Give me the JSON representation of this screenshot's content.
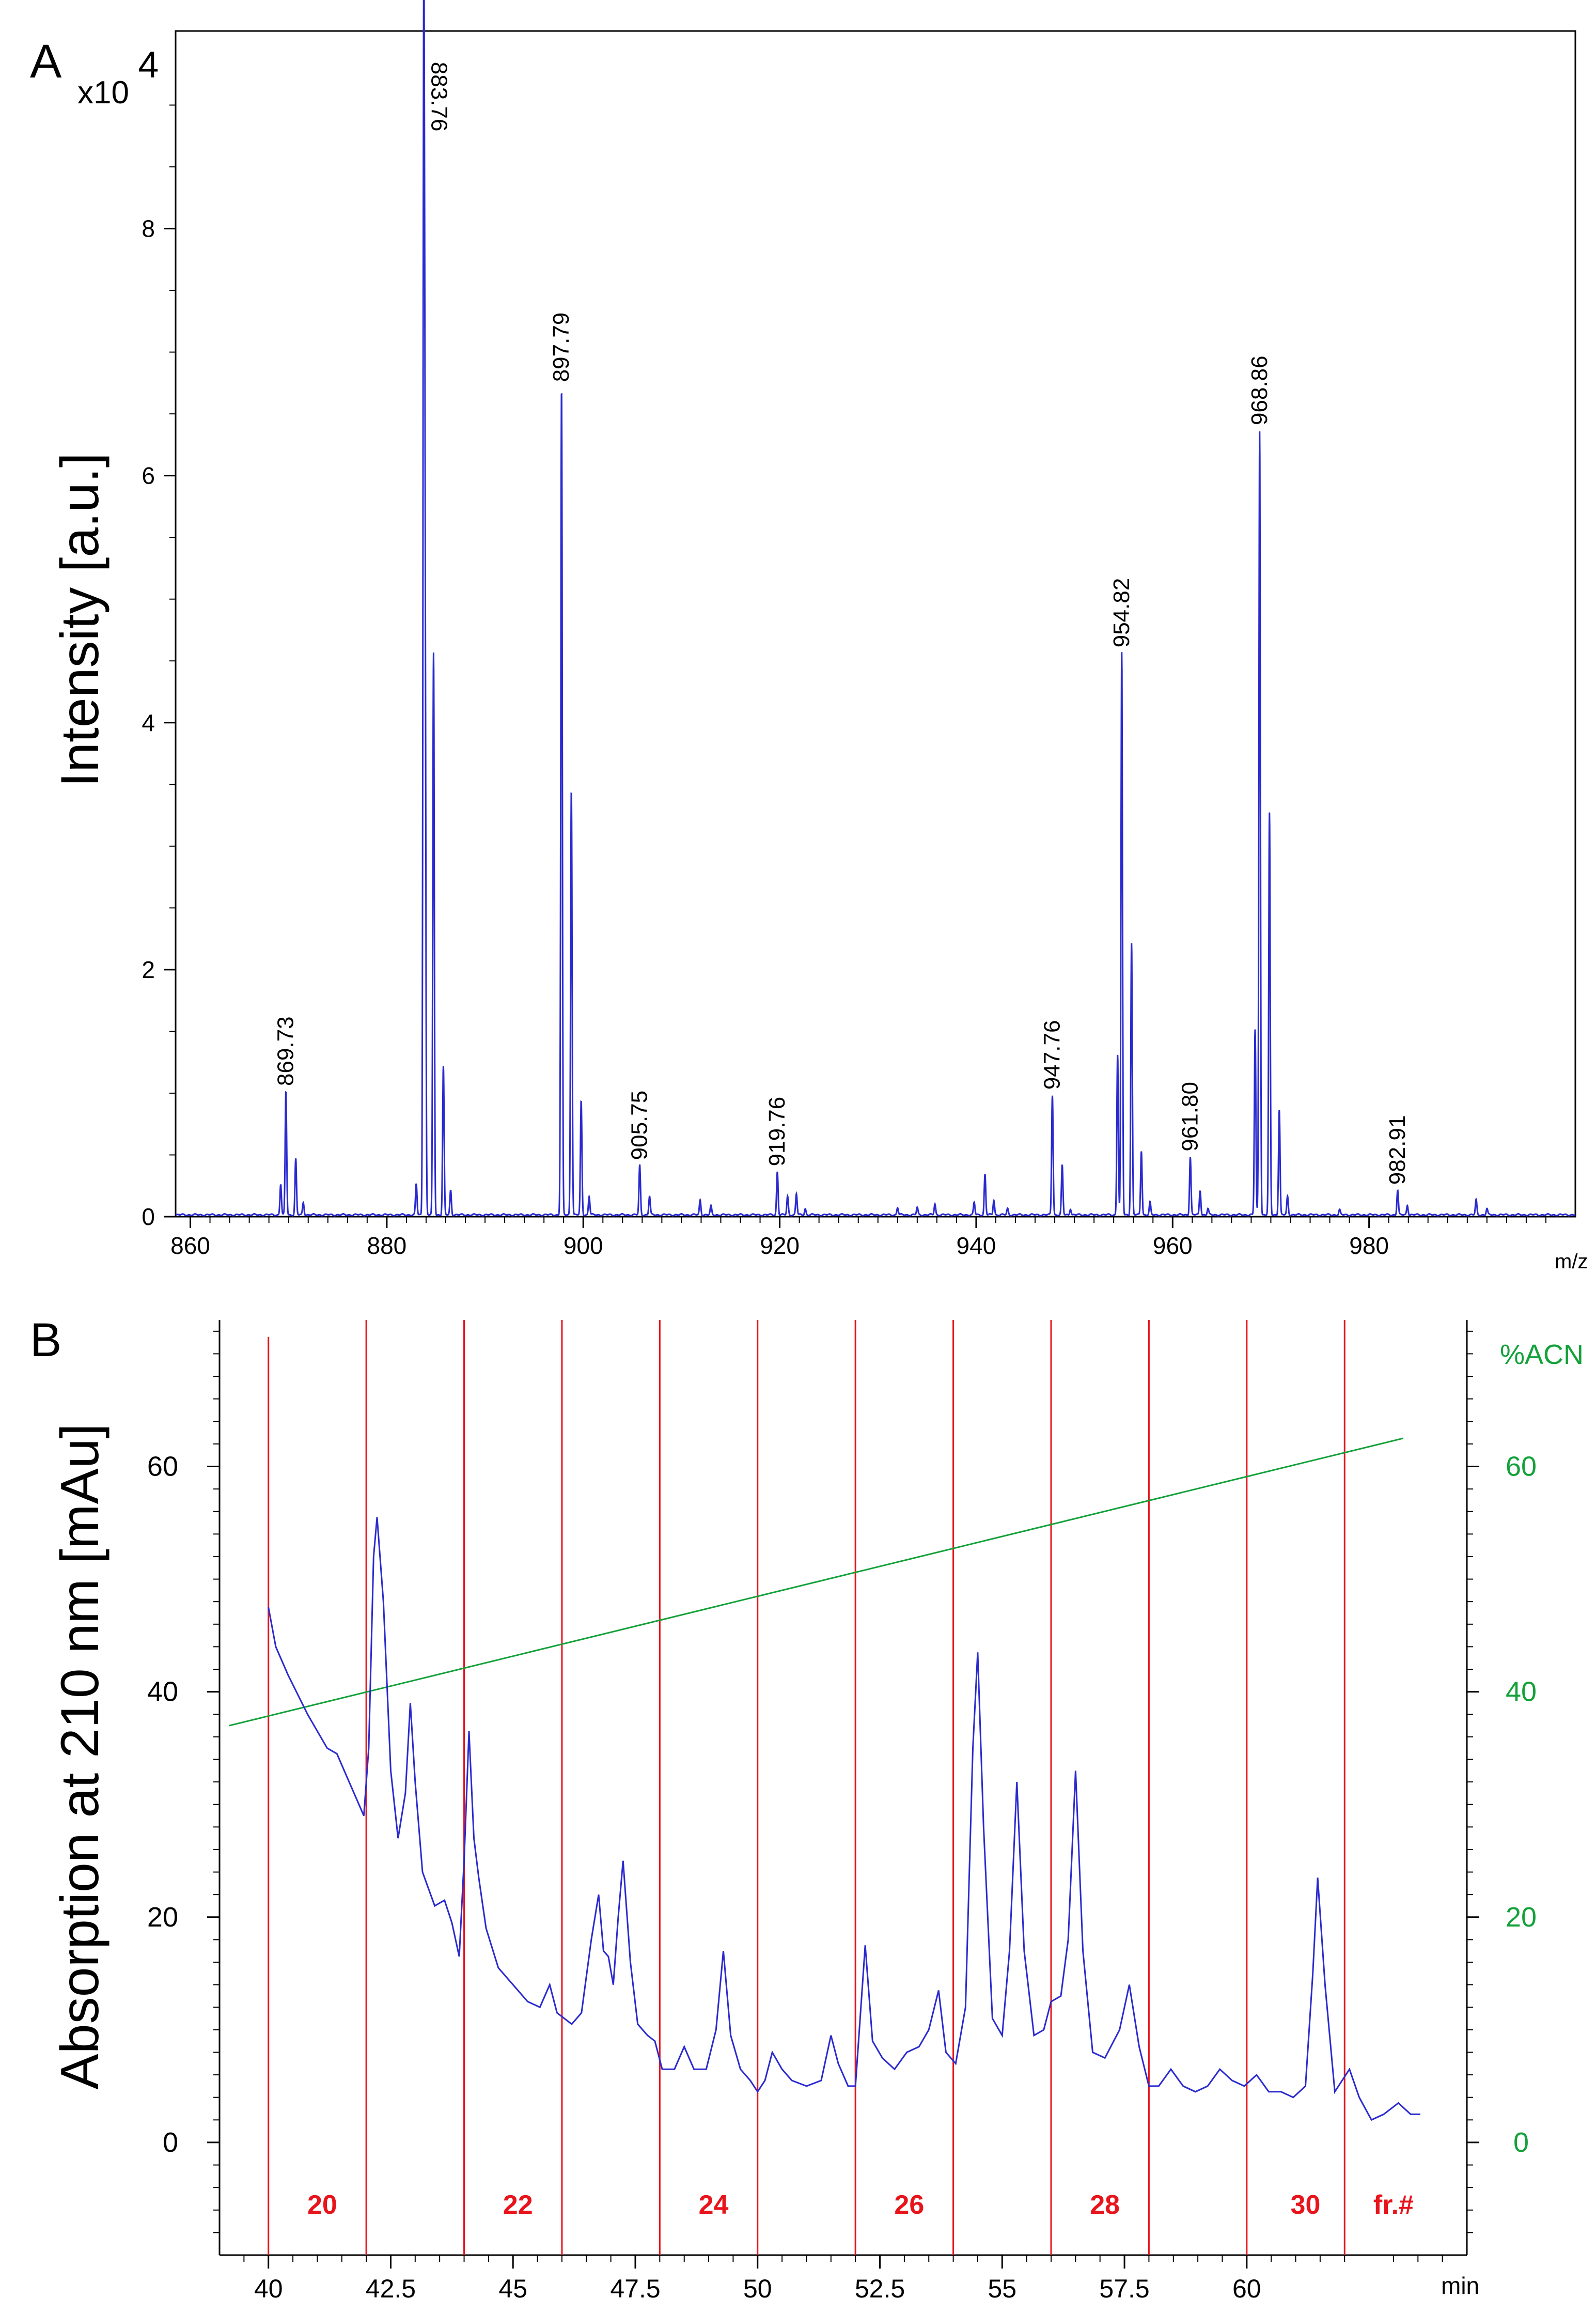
{
  "chart_data": [
    {
      "type": "line",
      "panel_label": "A",
      "multiplier_label": "x10",
      "multiplier_exponent": "4",
      "ylabel": "Intensity [a.u.]",
      "xlabel": "m/z",
      "xlim": [
        858.5,
        1001
      ],
      "ylim": [
        0,
        9.6
      ],
      "x_ticks": [
        860,
        880,
        900,
        920,
        940,
        960,
        980
      ],
      "y_ticks": [
        0,
        2,
        4,
        6,
        8
      ],
      "peaks": [
        {
          "mz": 869.2,
          "h": 0.25
        },
        {
          "mz": 869.73,
          "h": 1.0
        },
        {
          "mz": 870.73,
          "h": 0.45
        },
        {
          "mz": 871.5,
          "h": 0.1
        },
        {
          "mz": 883.0,
          "h": 0.25
        },
        {
          "mz": 883.76,
          "h": 9.35
        },
        {
          "mz": 883.9,
          "h": 4.5
        },
        {
          "mz": 884.76,
          "h": 4.55
        },
        {
          "mz": 885.76,
          "h": 1.2
        },
        {
          "mz": 886.5,
          "h": 0.2
        },
        {
          "mz": 897.79,
          "h": 6.7
        },
        {
          "mz": 898.79,
          "h": 3.45
        },
        {
          "mz": 899.79,
          "h": 0.92
        },
        {
          "mz": 900.6,
          "h": 0.15
        },
        {
          "mz": 905.75,
          "h": 0.4
        },
        {
          "mz": 906.75,
          "h": 0.15
        },
        {
          "mz": 911.9,
          "h": 0.12
        },
        {
          "mz": 913.0,
          "h": 0.07
        },
        {
          "mz": 919.76,
          "h": 0.35
        },
        {
          "mz": 920.8,
          "h": 0.15
        },
        {
          "mz": 921.7,
          "h": 0.17
        },
        {
          "mz": 922.6,
          "h": 0.05
        },
        {
          "mz": 932.0,
          "h": 0.06
        },
        {
          "mz": 934.0,
          "h": 0.06
        },
        {
          "mz": 935.8,
          "h": 0.09
        },
        {
          "mz": 939.8,
          "h": 0.1
        },
        {
          "mz": 940.9,
          "h": 0.33
        },
        {
          "mz": 941.8,
          "h": 0.12
        },
        {
          "mz": 943.2,
          "h": 0.05
        },
        {
          "mz": 947.76,
          "h": 0.97
        },
        {
          "mz": 948.76,
          "h": 0.4
        },
        {
          "mz": 949.6,
          "h": 0.05
        },
        {
          "mz": 954.4,
          "h": 1.3
        },
        {
          "mz": 954.82,
          "h": 4.55
        },
        {
          "mz": 955.82,
          "h": 2.2
        },
        {
          "mz": 956.82,
          "h": 0.52
        },
        {
          "mz": 957.7,
          "h": 0.1
        },
        {
          "mz": 961.8,
          "h": 0.47
        },
        {
          "mz": 962.8,
          "h": 0.2
        },
        {
          "mz": 963.6,
          "h": 0.05
        },
        {
          "mz": 968.4,
          "h": 1.5
        },
        {
          "mz": 968.86,
          "h": 6.35
        },
        {
          "mz": 969.86,
          "h": 3.25
        },
        {
          "mz": 970.86,
          "h": 0.85
        },
        {
          "mz": 971.7,
          "h": 0.15
        },
        {
          "mz": 977.0,
          "h": 0.04
        },
        {
          "mz": 982.91,
          "h": 0.2
        },
        {
          "mz": 983.9,
          "h": 0.08
        },
        {
          "mz": 990.9,
          "h": 0.12
        },
        {
          "mz": 992.0,
          "h": 0.05
        }
      ],
      "labels": [
        {
          "text": "869.73",
          "mz": 869.73,
          "h": 1.0
        },
        {
          "text": "883.76",
          "mz": 883.76,
          "h": 9.35
        },
        {
          "text": "897.79",
          "mz": 897.79,
          "h": 6.7
        },
        {
          "text": "905.75",
          "mz": 905.75,
          "h": 0.4
        },
        {
          "text": "919.76",
          "mz": 919.76,
          "h": 0.35
        },
        {
          "text": "947.76",
          "mz": 947.76,
          "h": 0.97
        },
        {
          "text": "954.82",
          "mz": 954.82,
          "h": 4.55
        },
        {
          "text": "961.80",
          "mz": 961.8,
          "h": 0.47
        },
        {
          "text": "968.86",
          "mz": 968.86,
          "h": 6.35
        },
        {
          "text": "982.91",
          "mz": 982.91,
          "h": 0.2
        }
      ],
      "colors": {
        "trace": "#2a2ad0",
        "axes": "#000000"
      }
    },
    {
      "type": "line",
      "panel_label": "B",
      "ylabel": "Absorption at 210 nm [mAu]",
      "xlabel": "min",
      "xlim": [
        39.0,
        64.5
      ],
      "ylim": [
        -10,
        73
      ],
      "x_ticks": [
        "40",
        "42.5",
        "45",
        "47.5",
        "50",
        "52.5",
        "55",
        "57.5",
        "60"
      ],
      "x_tick_values": [
        40,
        42.5,
        45,
        47.5,
        50,
        52.5,
        55,
        57.5,
        60
      ],
      "y_ticks": [
        0,
        20,
        40,
        60
      ],
      "y2label": "%ACN",
      "y2_ticks": [
        "0",
        "20",
        "40",
        "60"
      ],
      "y2_tick_values": [
        0,
        20,
        40,
        60
      ],
      "fraction_boundaries": [
        40,
        42,
        44,
        46,
        48,
        50,
        52,
        54,
        56,
        58,
        60,
        62
      ],
      "fraction_labels": [
        {
          "text": "20",
          "t": 41.1
        },
        {
          "text": "22",
          "t": 45.1
        },
        {
          "text": "24",
          "t": 49.1
        },
        {
          "text": "26",
          "t": 53.1
        },
        {
          "text": "28",
          "t": 57.1
        },
        {
          "text": "30",
          "t": 61.2
        },
        {
          "text": "fr.#",
          "t": 63.0
        }
      ],
      "uv_trace": [
        [
          40.0,
          47.5
        ],
        [
          40.15,
          44.0
        ],
        [
          40.4,
          41.5
        ],
        [
          40.8,
          38.0
        ],
        [
          41.2,
          35.0
        ],
        [
          41.4,
          34.5
        ],
        [
          41.6,
          32.5
        ],
        [
          41.8,
          30.5
        ],
        [
          41.95,
          29.0
        ],
        [
          42.05,
          35.0
        ],
        [
          42.15,
          52.0
        ],
        [
          42.22,
          55.5
        ],
        [
          42.35,
          48.0
        ],
        [
          42.5,
          33.0
        ],
        [
          42.65,
          27.0
        ],
        [
          42.8,
          31.0
        ],
        [
          42.9,
          39.0
        ],
        [
          43.0,
          32.0
        ],
        [
          43.15,
          24.0
        ],
        [
          43.4,
          21.0
        ],
        [
          43.6,
          21.5
        ],
        [
          43.75,
          19.5
        ],
        [
          43.9,
          16.5
        ],
        [
          44.0,
          25.0
        ],
        [
          44.1,
          36.5
        ],
        [
          44.2,
          27.0
        ],
        [
          44.3,
          23.5
        ],
        [
          44.45,
          19.0
        ],
        [
          44.7,
          15.5
        ],
        [
          45.0,
          14.0
        ],
        [
          45.3,
          12.5
        ],
        [
          45.55,
          12.0
        ],
        [
          45.75,
          14.0
        ],
        [
          45.9,
          11.5
        ],
        [
          46.2,
          10.5
        ],
        [
          46.4,
          11.5
        ],
        [
          46.6,
          18.0
        ],
        [
          46.75,
          22.0
        ],
        [
          46.85,
          17.0
        ],
        [
          46.95,
          16.5
        ],
        [
          47.05,
          14.0
        ],
        [
          47.15,
          20.0
        ],
        [
          47.25,
          25.0
        ],
        [
          47.4,
          16.0
        ],
        [
          47.55,
          10.5
        ],
        [
          47.75,
          9.5
        ],
        [
          47.9,
          9.0
        ],
        [
          48.05,
          6.5
        ],
        [
          48.3,
          6.5
        ],
        [
          48.5,
          8.5
        ],
        [
          48.7,
          6.5
        ],
        [
          48.95,
          6.5
        ],
        [
          49.15,
          10.0
        ],
        [
          49.3,
          17.0
        ],
        [
          49.45,
          9.5
        ],
        [
          49.65,
          6.5
        ],
        [
          49.85,
          5.5
        ],
        [
          50.0,
          4.5
        ],
        [
          50.15,
          5.5
        ],
        [
          50.3,
          8.0
        ],
        [
          50.5,
          6.5
        ],
        [
          50.7,
          5.5
        ],
        [
          51.0,
          5.0
        ],
        [
          51.3,
          5.5
        ],
        [
          51.5,
          9.5
        ],
        [
          51.65,
          7.0
        ],
        [
          51.85,
          5.0
        ],
        [
          52.0,
          5.0
        ],
        [
          52.2,
          17.5
        ],
        [
          52.35,
          9.0
        ],
        [
          52.55,
          7.5
        ],
        [
          52.8,
          6.5
        ],
        [
          53.05,
          8.0
        ],
        [
          53.3,
          8.5
        ],
        [
          53.5,
          10.0
        ],
        [
          53.7,
          13.5
        ],
        [
          53.85,
          8.0
        ],
        [
          54.05,
          7.0
        ],
        [
          54.25,
          12.0
        ],
        [
          54.4,
          35.0
        ],
        [
          54.5,
          43.5
        ],
        [
          54.62,
          28.0
        ],
        [
          54.8,
          11.0
        ],
        [
          55.0,
          9.5
        ],
        [
          55.15,
          17.0
        ],
        [
          55.3,
          32.0
        ],
        [
          55.45,
          17.0
        ],
        [
          55.65,
          9.5
        ],
        [
          55.85,
          10.0
        ],
        [
          56.0,
          12.5
        ],
        [
          56.2,
          13.0
        ],
        [
          56.35,
          18.0
        ],
        [
          56.5,
          33.0
        ],
        [
          56.65,
          17.0
        ],
        [
          56.85,
          8.0
        ],
        [
          57.1,
          7.5
        ],
        [
          57.4,
          10.0
        ],
        [
          57.6,
          14.0
        ],
        [
          57.8,
          8.5
        ],
        [
          58.0,
          5.0
        ],
        [
          58.2,
          5.0
        ],
        [
          58.45,
          6.5
        ],
        [
          58.7,
          5.0
        ],
        [
          58.95,
          4.5
        ],
        [
          59.2,
          5.0
        ],
        [
          59.45,
          6.5
        ],
        [
          59.7,
          5.5
        ],
        [
          59.95,
          5.0
        ],
        [
          60.2,
          6.0
        ],
        [
          60.45,
          4.5
        ],
        [
          60.7,
          4.5
        ],
        [
          60.95,
          4.0
        ],
        [
          61.2,
          5.0
        ],
        [
          61.35,
          15.0
        ],
        [
          61.45,
          23.5
        ],
        [
          61.6,
          14.0
        ],
        [
          61.8,
          4.5
        ],
        [
          62.1,
          6.5
        ],
        [
          62.3,
          4.0
        ],
        [
          62.55,
          2.0
        ],
        [
          62.8,
          2.5
        ],
        [
          63.1,
          3.5
        ],
        [
          63.35,
          2.5
        ],
        [
          63.55,
          2.5
        ]
      ],
      "acn_line": [
        [
          39.2,
          37.0
        ],
        [
          63.2,
          62.5
        ]
      ],
      "colors": {
        "trace": "#2a2ad0",
        "acn": "#13a13a",
        "fraction_lines": "#e8141c",
        "axes": "#000000"
      }
    }
  ]
}
